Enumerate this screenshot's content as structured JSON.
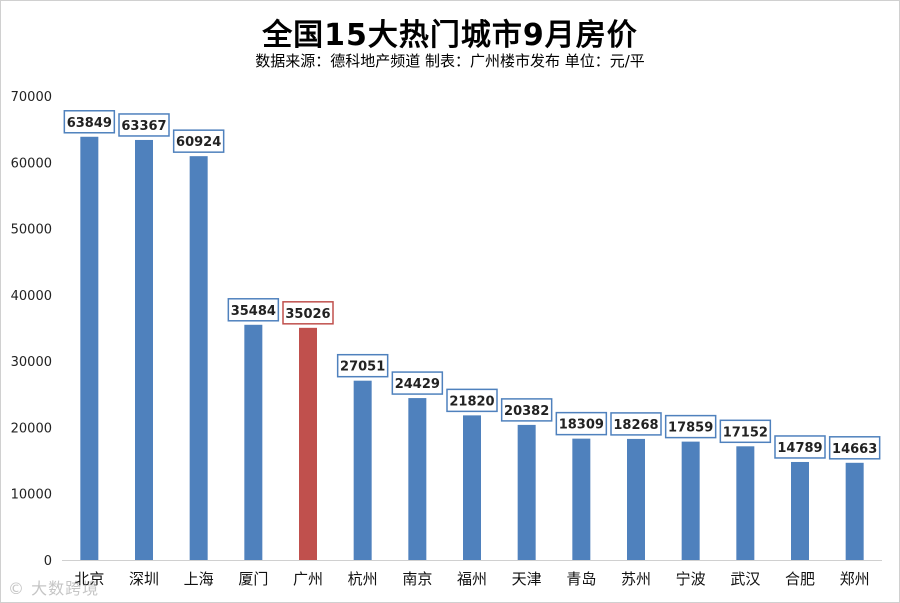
{
  "header": {
    "title": "全国15大热门城市9月房价",
    "subtitle": "数据来源：德科地产频道 制表：广州楼市发布 单位：元/平"
  },
  "watermark": "© 大数跨境",
  "chart_data": {
    "type": "bar",
    "categories": [
      "北京",
      "深圳",
      "上海",
      "厦门",
      "广州",
      "杭州",
      "南京",
      "福州",
      "天津",
      "青岛",
      "苏州",
      "宁波",
      "武汉",
      "合肥",
      "郑州"
    ],
    "values": [
      63849,
      63367,
      60924,
      35484,
      35026,
      27051,
      24429,
      21820,
      20382,
      18309,
      18268,
      17859,
      17152,
      14789,
      14663
    ],
    "highlight_index": 4,
    "ylim": [
      0,
      70000
    ],
    "yticks": [
      0,
      10000,
      20000,
      30000,
      40000,
      50000,
      60000,
      70000
    ],
    "bar_color": "#4f81bd",
    "highlight_color": "#c0504d",
    "label_border_color": "#4f81bd",
    "highlight_label_border_color": "#c0504d",
    "grid": false
  }
}
